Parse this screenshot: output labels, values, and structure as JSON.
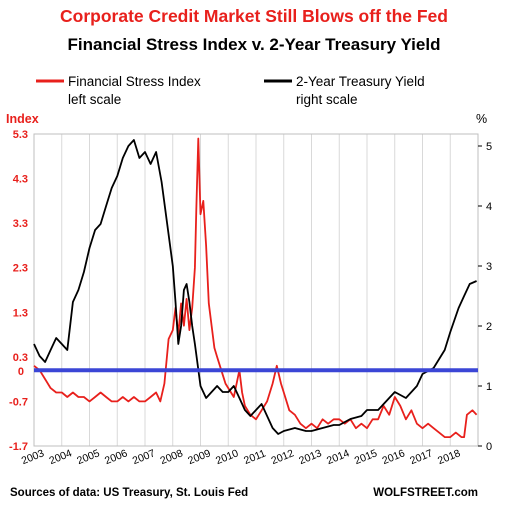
{
  "header": {
    "title": "Corporate Credit Market Still Blows off the Fed",
    "subtitle": "Financial Stress Index v. 2-Year Treasury Yield"
  },
  "footer": {
    "source": "Sources of data: US Treasury, St. Louis Fed",
    "credit": "WOLFSTREET.com"
  },
  "colors": {
    "stress": "#e8201c",
    "yield": "#000000",
    "zero_line": "#3b46d6",
    "grid": "#d9d9d9"
  },
  "chart_data": {
    "type": "line",
    "title": "Financial Stress Index v. 2-Year Treasury Yield",
    "ylabel_left": "Index",
    "ylabel_right": "%",
    "xlim": [
      2003.0,
      2019.0
    ],
    "ylim_left": [
      -1.7,
      5.3
    ],
    "ylim_right": [
      0,
      5.2
    ],
    "left_ticks": [
      "5.3",
      "4.3",
      "3.3",
      "2.3",
      "1.3",
      "0.3",
      "-0.7",
      "-1.7"
    ],
    "left_tick_values": [
      5.3,
      4.3,
      3.3,
      2.3,
      1.3,
      0.3,
      -0.7,
      -1.7
    ],
    "zero_label": "0",
    "right_ticks": [
      "5",
      "4",
      "3",
      "2",
      "1",
      "0"
    ],
    "right_tick_values": [
      5,
      4,
      3,
      2,
      1,
      0
    ],
    "x_ticks": [
      "2003",
      "2004",
      "2005",
      "2006",
      "2007",
      "2008",
      "2009",
      "2010",
      "2011",
      "2012",
      "2013",
      "2014",
      "2015",
      "2016",
      "2017",
      "2018"
    ],
    "x_tick_values": [
      2003,
      2004,
      2005,
      2006,
      2007,
      2008,
      2009,
      2010,
      2011,
      2012,
      2013,
      2014,
      2015,
      2016,
      2017,
      2018
    ],
    "grid": "vertical",
    "legend_position": "top",
    "zero_line": {
      "axis": "left",
      "value": 0
    },
    "series": [
      {
        "name": "Financial Stress Index",
        "legend_sub": "left scale",
        "axis": "left",
        "color": "#e8201c",
        "x": [
          2003.0,
          2003.2,
          2003.4,
          2003.6,
          2003.8,
          2004.0,
          2004.2,
          2004.4,
          2004.6,
          2004.8,
          2005.0,
          2005.2,
          2005.4,
          2005.6,
          2005.8,
          2006.0,
          2006.2,
          2006.4,
          2006.6,
          2006.8,
          2007.0,
          2007.2,
          2007.4,
          2007.55,
          2007.7,
          2007.85,
          2008.0,
          2008.1,
          2008.2,
          2008.3,
          2008.4,
          2008.5,
          2008.6,
          2008.7,
          2008.8,
          2008.85,
          2008.92,
          2009.0,
          2009.1,
          2009.2,
          2009.3,
          2009.4,
          2009.5,
          2009.6,
          2009.7,
          2009.8,
          2009.9,
          2010.0,
          2010.2,
          2010.4,
          2010.5,
          2010.6,
          2010.8,
          2011.0,
          2011.2,
          2011.4,
          2011.6,
          2011.75,
          2011.9,
          2012.0,
          2012.2,
          2012.4,
          2012.6,
          2012.8,
          2013.0,
          2013.2,
          2013.4,
          2013.6,
          2013.8,
          2014.0,
          2014.2,
          2014.4,
          2014.6,
          2014.8,
          2015.0,
          2015.2,
          2015.4,
          2015.6,
          2015.8,
          2016.0,
          2016.2,
          2016.4,
          2016.6,
          2016.8,
          2017.0,
          2017.2,
          2017.4,
          2017.6,
          2017.8,
          2018.0,
          2018.2,
          2018.4,
          2018.5,
          2018.6,
          2018.8,
          2018.95
        ],
        "values": [
          0.1,
          0.0,
          -0.2,
          -0.4,
          -0.5,
          -0.5,
          -0.6,
          -0.5,
          -0.6,
          -0.6,
          -0.7,
          -0.6,
          -0.5,
          -0.6,
          -0.7,
          -0.7,
          -0.6,
          -0.7,
          -0.6,
          -0.7,
          -0.7,
          -0.6,
          -0.5,
          -0.7,
          -0.3,
          0.7,
          0.9,
          1.4,
          0.8,
          1.5,
          1.0,
          1.6,
          0.9,
          1.4,
          2.3,
          3.6,
          5.2,
          3.5,
          3.8,
          2.8,
          1.5,
          1.0,
          0.5,
          0.3,
          0.1,
          -0.1,
          -0.3,
          -0.4,
          -0.6,
          0.0,
          -0.5,
          -0.8,
          -1.0,
          -1.1,
          -0.9,
          -0.7,
          -0.3,
          0.1,
          -0.3,
          -0.5,
          -0.9,
          -1.0,
          -1.2,
          -1.3,
          -1.2,
          -1.3,
          -1.1,
          -1.2,
          -1.1,
          -1.1,
          -1.2,
          -1.1,
          -1.3,
          -1.2,
          -1.3,
          -1.1,
          -1.1,
          -0.8,
          -1.0,
          -0.6,
          -0.8,
          -1.1,
          -0.9,
          -1.2,
          -1.3,
          -1.2,
          -1.3,
          -1.4,
          -1.5,
          -1.5,
          -1.4,
          -1.5,
          -1.5,
          -1.0,
          -0.9,
          -1.0
        ]
      },
      {
        "name": "2-Year Treasury Yield",
        "legend_sub": "right scale",
        "axis": "right",
        "color": "#000000",
        "x": [
          2003.0,
          2003.2,
          2003.4,
          2003.6,
          2003.8,
          2004.0,
          2004.2,
          2004.4,
          2004.6,
          2004.8,
          2005.0,
          2005.2,
          2005.4,
          2005.6,
          2005.8,
          2006.0,
          2006.2,
          2006.4,
          2006.6,
          2006.8,
          2007.0,
          2007.2,
          2007.4,
          2007.6,
          2007.8,
          2008.0,
          2008.1,
          2008.2,
          2008.3,
          2008.4,
          2008.5,
          2008.6,
          2008.7,
          2008.8,
          2009.0,
          2009.2,
          2009.4,
          2009.6,
          2009.8,
          2010.0,
          2010.2,
          2010.4,
          2010.6,
          2010.8,
          2011.0,
          2011.2,
          2011.4,
          2011.6,
          2011.8,
          2012.0,
          2012.4,
          2012.8,
          2013.0,
          2013.4,
          2013.8,
          2014.0,
          2014.4,
          2014.8,
          2015.0,
          2015.4,
          2015.8,
          2016.0,
          2016.4,
          2016.8,
          2017.0,
          2017.4,
          2017.8,
          2018.0,
          2018.3,
          2018.5,
          2018.7,
          2018.95
        ],
        "values": [
          1.7,
          1.5,
          1.4,
          1.6,
          1.8,
          1.7,
          1.6,
          2.4,
          2.6,
          2.9,
          3.3,
          3.6,
          3.7,
          4.0,
          4.3,
          4.5,
          4.8,
          5.0,
          5.1,
          4.8,
          4.9,
          4.7,
          4.9,
          4.4,
          3.7,
          3.0,
          2.4,
          1.7,
          2.0,
          2.6,
          2.7,
          2.4,
          2.0,
          1.7,
          1.0,
          0.8,
          0.9,
          1.0,
          0.9,
          0.9,
          1.0,
          0.8,
          0.6,
          0.5,
          0.6,
          0.7,
          0.5,
          0.3,
          0.2,
          0.25,
          0.3,
          0.25,
          0.25,
          0.3,
          0.35,
          0.35,
          0.45,
          0.5,
          0.6,
          0.6,
          0.8,
          0.9,
          0.8,
          1.0,
          1.2,
          1.3,
          1.6,
          1.9,
          2.3,
          2.5,
          2.7,
          2.75
        ]
      }
    ]
  }
}
